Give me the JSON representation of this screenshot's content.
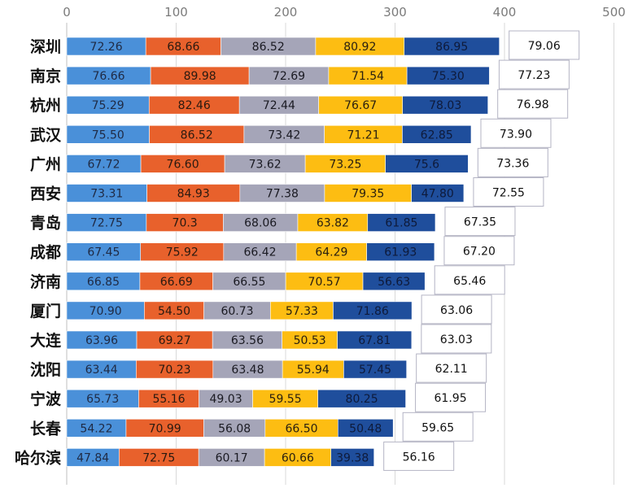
{
  "chart_data": {
    "type": "bar",
    "orientation": "horizontal",
    "stacked": true,
    "x_ticks": [
      "0",
      "100",
      "200",
      "300",
      "400",
      "500"
    ],
    "xlim": [
      0,
      500
    ],
    "grid": true,
    "categories": [
      "深圳",
      "南京",
      "杭州",
      "武汉",
      "广州",
      "西安",
      "青岛",
      "成都",
      "济南",
      "厦门",
      "大连",
      "沈阳",
      "宁波",
      "长春",
      "哈尔滨"
    ],
    "series": [
      {
        "color": "#4a90d9",
        "text_color": "#1f2a44",
        "values": [
          72.26,
          76.66,
          75.29,
          75.5,
          67.72,
          73.31,
          72.75,
          67.45,
          66.85,
          70.9,
          63.96,
          63.44,
          65.73,
          54.22,
          47.84
        ],
        "labels": [
          "72.26",
          "76.66",
          "75.29",
          "75.50",
          "67.72",
          "73.31",
          "72.75",
          "67.45",
          "66.85",
          "70.90",
          "63.96",
          "63.44",
          "65.73",
          "54.22",
          "47.84"
        ]
      },
      {
        "color": "#e8612c",
        "text_color": "#2a1a10",
        "values": [
          68.66,
          89.98,
          82.46,
          86.52,
          76.6,
          84.93,
          70.3,
          75.92,
          66.69,
          54.5,
          69.27,
          70.23,
          55.16,
          70.99,
          72.75
        ],
        "labels": [
          "68.66",
          "89.98",
          "82.46",
          "86.52",
          "76.60",
          "84.93",
          "70.3",
          "75.92",
          "66.69",
          "54.50",
          "69.27",
          "70.23",
          "55.16",
          "70.99",
          "72.75"
        ]
      },
      {
        "color": "#a5a5b8",
        "text_color": "#1a1a22",
        "values": [
          86.52,
          72.69,
          72.44,
          73.42,
          73.62,
          77.38,
          68.06,
          66.42,
          66.55,
          60.73,
          63.56,
          63.48,
          49.03,
          56.08,
          60.17
        ],
        "labels": [
          "86.52",
          "72.69",
          "72.44",
          "73.42",
          "73.62",
          "77.38",
          "68.06",
          "66.42",
          "66.55",
          "60.73",
          "63.56",
          "63.48",
          "49.03",
          "56.08",
          "60.17"
        ]
      },
      {
        "color": "#fdbd12",
        "text_color": "#2a2010",
        "values": [
          80.92,
          71.54,
          76.67,
          71.21,
          73.25,
          79.35,
          63.82,
          64.29,
          70.57,
          57.33,
          50.53,
          55.94,
          59.55,
          66.5,
          60.66
        ],
        "labels": [
          "80.92",
          "71.54",
          "76.67",
          "71.21",
          "73.25",
          "79.35",
          "63.82",
          "64.29",
          "70.57",
          "57.33",
          "50.53",
          "55.94",
          "59.55",
          "66.50",
          "60.66"
        ]
      },
      {
        "color": "#1f4e9c",
        "text_color": "#0e1a3a",
        "values": [
          86.95,
          75.3,
          78.03,
          62.85,
          75.6,
          47.8,
          61.85,
          61.93,
          56.63,
          71.86,
          67.81,
          57.45,
          80.25,
          50.48,
          39.38
        ],
        "labels": [
          "86.95",
          "75.30",
          "78.03",
          "62.85",
          "75.6",
          "47.80",
          "61.85",
          "61.93",
          "56.63",
          "71.86",
          "67.81",
          "57.45",
          "80.25",
          "50.48",
          "39.38"
        ]
      }
    ],
    "averages": [
      79.06,
      77.23,
      76.98,
      73.9,
      73.36,
      72.55,
      67.35,
      67.2,
      65.46,
      63.06,
      63.03,
      62.11,
      61.95,
      59.65,
      56.16
    ],
    "average_labels": [
      "79.06",
      "77.23",
      "76.98",
      "73.90",
      "73.36",
      "72.55",
      "67.35",
      "67.20",
      "65.46",
      "63.06",
      "63.03",
      "62.11",
      "61.95",
      "59.65",
      "56.16"
    ]
  }
}
